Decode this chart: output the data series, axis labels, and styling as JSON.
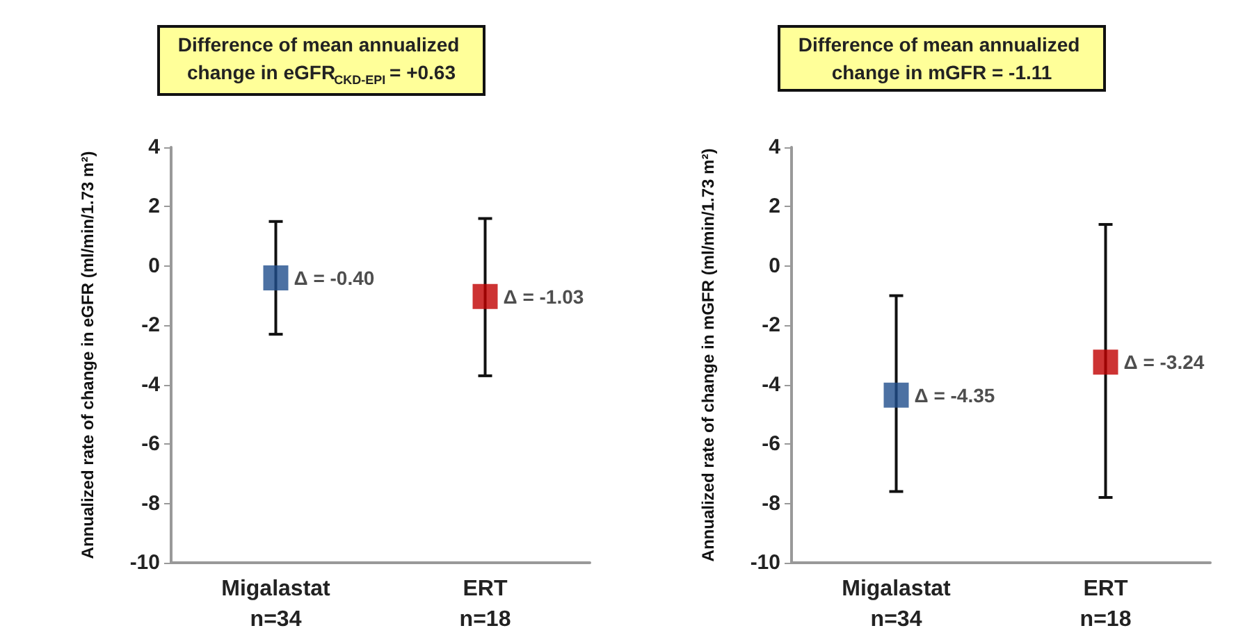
{
  "chart_data": [
    {
      "type": "scatter",
      "title": "Difference of mean annualized change in eGFR$_{CKD-EPI}$ = +0.63",
      "ylabel": "Annualized rate of change in eGFR (ml/min/1.73 m²)",
      "categories": [
        "Migalastat\nn=34",
        "ERT\nn=18"
      ],
      "values": [
        -0.4,
        -1.03
      ],
      "colors": [
        "#1f4e8c",
        "#c00000"
      ],
      "errors": [
        [
          -2.3,
          1.5
        ],
        [
          -3.7,
          1.6
        ]
      ],
      "value_labels": [
        "Δ = -0.40",
        "Δ = -1.03"
      ],
      "ylim": [
        -10,
        4
      ],
      "yticks": [
        -10,
        -8,
        -6,
        -4,
        -2,
        0,
        2,
        4
      ],
      "grid": false,
      "marker": "square"
    },
    {
      "type": "scatter",
      "title": "Difference of mean annualized change in mGFR = -1.11",
      "ylabel": "Annualized rate of change in mGFR (ml/min/1.73 m²)",
      "categories": [
        "Migalastat\nn=34",
        "ERT\nn=18"
      ],
      "values": [
        -4.35,
        -3.24
      ],
      "colors": [
        "#1f4e8c",
        "#c00000"
      ],
      "errors": [
        [
          -7.6,
          -1.0
        ],
        [
          -7.8,
          1.4
        ]
      ],
      "value_labels": [
        "Δ = -4.35",
        "Δ = -3.24"
      ],
      "ylim": [
        -10,
        4
      ],
      "yticks": [
        -10,
        -8,
        -6,
        -4,
        -2,
        0,
        2,
        4
      ],
      "grid": false,
      "marker": "square"
    }
  ]
}
